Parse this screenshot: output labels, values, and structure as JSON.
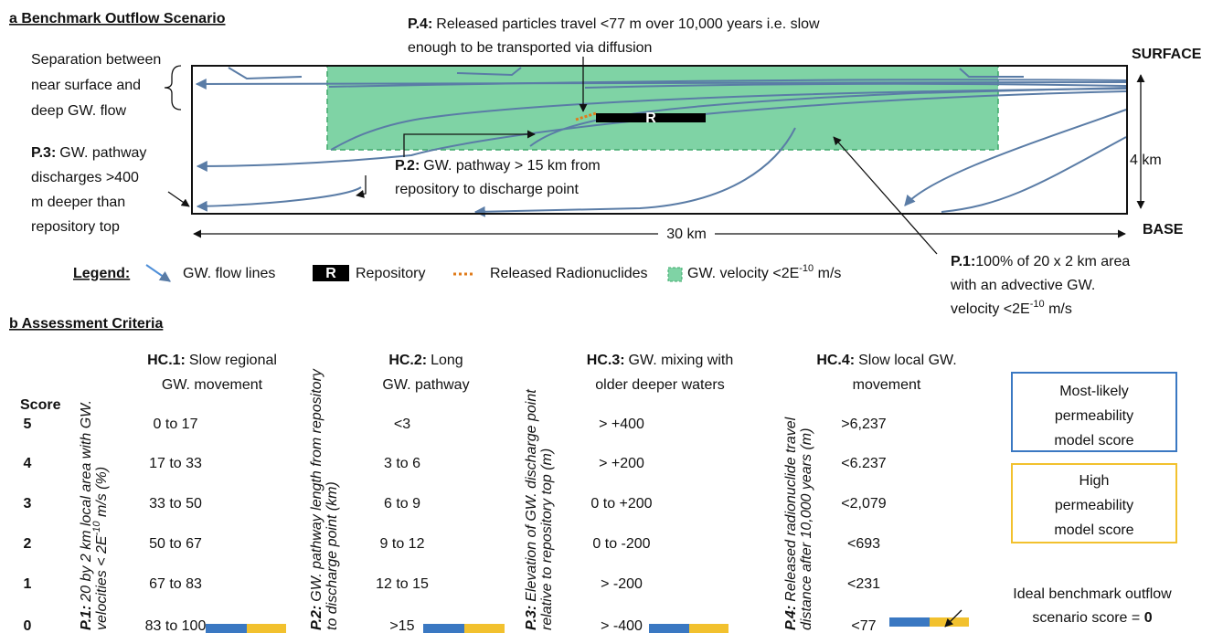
{
  "panel_a": {
    "title": "a  Benchmark Outflow Scenario",
    "separation": [
      "Separation between",
      "near surface and",
      "deep GW. flow"
    ],
    "p3": {
      "bold": "P.3:",
      "lines": [
        "GW. pathway",
        "discharges >400",
        "m deeper than",
        "repository top"
      ]
    },
    "p4": {
      "bold": "P.4:",
      "lines": [
        "Released particles travel <77 m over 10,000 years i.e. slow",
        "enough to be transported via diffusion"
      ]
    },
    "p2": {
      "bold": "P.2:",
      "lines": [
        "GW. pathway > 15 km from",
        "repository to discharge point"
      ]
    },
    "p1": {
      "bold": "P.1:",
      "lines": [
        "100% of 20 x 2 km area",
        "with an advective GW.",
        "velocity <2E"
      ],
      "sup": "-10",
      "tail": " m/s"
    },
    "surface": "SURFACE",
    "base": "BASE",
    "depth": "4 km",
    "width": "30 km",
    "repository": "R",
    "legend": {
      "title": "Legend:",
      "flow_lines": "GW. flow lines",
      "repository_icon": "R",
      "repository": "Repository",
      "released": "Released Radionuclides",
      "velocity": "GW. velocity <2E",
      "velocity_sup": "-10",
      "velocity_tail": " m/s"
    }
  },
  "panel_b": {
    "title": "b  Assessment Criteria",
    "score_header": "Score",
    "scores": [
      5,
      4,
      3,
      2,
      1,
      0
    ],
    "columns": [
      {
        "hc_bold": "HC.1:",
        "hc_lines": [
          "Slow regional",
          "GW. movement"
        ],
        "criterion_bold": "P.1:",
        "criterion_lines": [
          "20 by 2 km local area with GW.",
          "velocities < 2E"
        ],
        "criterion_sup": "-10",
        "criterion_tail": " m/s (%)",
        "values": [
          "0 to 17",
          "17 to 33",
          "33 to 50",
          "50 to 67",
          "67 to 83",
          "83 to 100"
        ]
      },
      {
        "hc_bold": "HC.2:",
        "hc_lines": [
          "Long",
          "GW. pathway"
        ],
        "criterion_bold": "P.2:",
        "criterion_lines": [
          "GW. pathway length from repository",
          "to discharge point (km)"
        ],
        "values": [
          "<3",
          "3 to 6",
          "6 to 9",
          "9 to 12",
          "12 to 15",
          ">15"
        ]
      },
      {
        "hc_bold": "HC.3:",
        "hc_lines": [
          "GW. mixing with",
          "older deeper waters"
        ],
        "criterion_bold": "P.3:",
        "criterion_lines": [
          "Elevation of GW. discharge point",
          "relative to repository top (m)"
        ],
        "values": [
          "> +400",
          "> +200",
          "0 to +200",
          "0 to -200",
          "> -200",
          "> -400"
        ]
      },
      {
        "hc_bold": "HC.4:",
        "hc_lines": [
          "Slow local GW.",
          "movement"
        ],
        "criterion_bold": "P.4:",
        "criterion_lines": [
          "Released radionuclide travel",
          "distance after 10,000 years (m)"
        ],
        "values": [
          ">6,237",
          "<6.237",
          "<2,079",
          "<693",
          "<231",
          "<77"
        ]
      }
    ],
    "key": {
      "most_likely": [
        "Most-likely",
        "permeability",
        "model score"
      ],
      "high": [
        "High",
        "permeability",
        "model score"
      ],
      "ideal": [
        "Ideal benchmark outflow",
        "scenario score = "
      ],
      "ideal_score": "0"
    }
  }
}
